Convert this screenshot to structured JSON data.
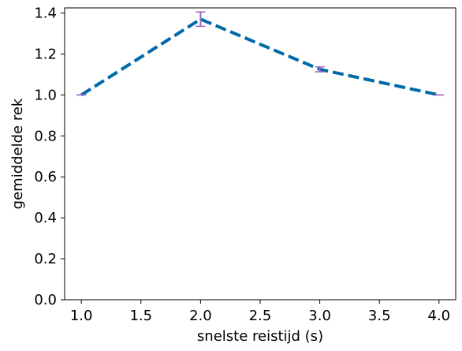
{
  "chart_data": {
    "type": "line",
    "title": "",
    "xlabel": "snelste reistijd (s)",
    "ylabel": "gemiddelde rek",
    "xlim": [
      0.86,
      4.14
    ],
    "ylim": [
      0.0,
      1.425
    ],
    "grid": false,
    "legend": "none",
    "xticks": [
      "1.0",
      "1.5",
      "2.0",
      "2.5",
      "3.0",
      "3.5",
      "4.0"
    ],
    "yticks": [
      "0.0",
      "0.2",
      "0.4",
      "0.6",
      "0.8",
      "1.0",
      "1.2",
      "1.4"
    ],
    "series": [
      {
        "x": [
          1.0,
          2.0,
          3.0,
          4.0
        ],
        "y": [
          1.0,
          1.37,
          1.125,
          1.0
        ],
        "yerr": [
          0.0,
          0.035,
          0.012,
          0.0
        ],
        "line_color": "#0069a8",
        "line_style": "dashed",
        "errorbar_color": "#9b62c7"
      }
    ]
  }
}
